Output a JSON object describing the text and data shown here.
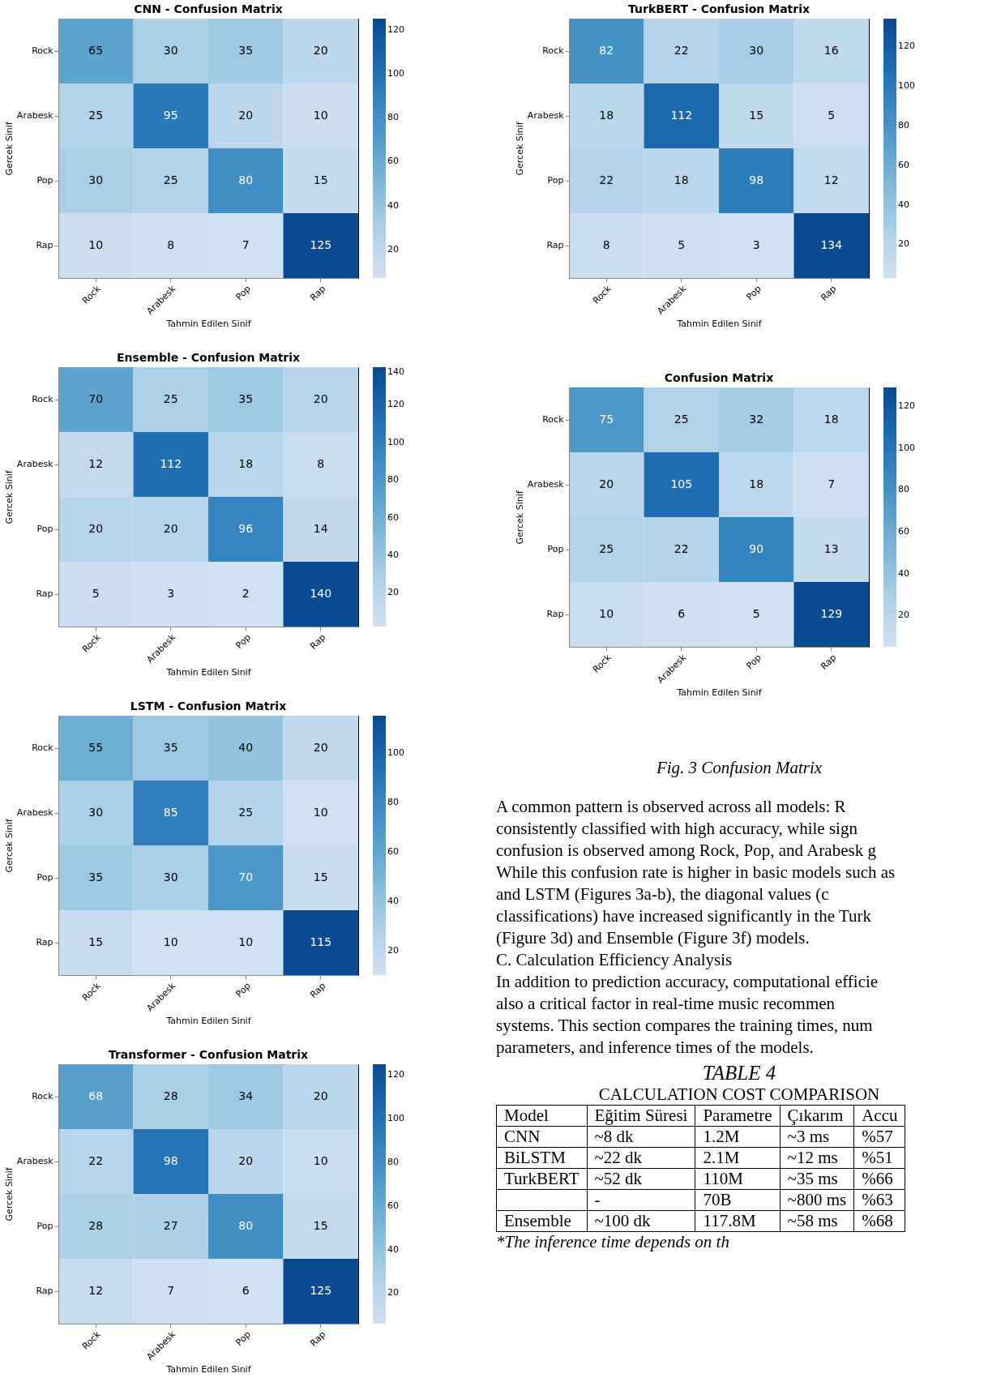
{
  "chart_data": [
    {
      "type": "heatmap",
      "title": "CNN - Confusion Matrix",
      "xlabel": "Tahmin Edilen Sinif",
      "ylabel": "Gercek Sinif",
      "categories": [
        "Rock",
        "Arabesk",
        "Pop",
        "Rap"
      ],
      "y_categories": [
        "Rock",
        "Arabesk",
        "Pop",
        "Rap"
      ],
      "cells": [
        [
          65,
          30,
          35,
          20
        ],
        [
          25,
          95,
          20,
          10
        ],
        [
          30,
          25,
          80,
          15
        ],
        [
          10,
          8,
          7,
          125
        ]
      ],
      "clim": [
        7,
        125
      ],
      "cticks": [
        20,
        40,
        60,
        80,
        100,
        120
      ],
      "data_labels": true
    },
    {
      "type": "heatmap",
      "title": "Ensemble - Confusion Matrix",
      "xlabel": "Tahmin Edilen Sinif",
      "ylabel": "Gercek Sinif",
      "categories": [
        "Rock",
        "Arabesk",
        "Pop",
        "Rap"
      ],
      "y_categories": [
        "Rock",
        "Arabesk",
        "Pop",
        "Rap"
      ],
      "cells": [
        [
          70,
          25,
          35,
          20
        ],
        [
          12,
          112,
          18,
          8
        ],
        [
          20,
          20,
          96,
          14
        ],
        [
          5,
          3,
          2,
          140
        ]
      ],
      "clim": [
        2,
        140
      ],
      "cticks": [
        20,
        40,
        60,
        80,
        100,
        120,
        140
      ],
      "data_labels": true
    },
    {
      "type": "heatmap",
      "title": "LSTM - Confusion Matrix",
      "xlabel": "Tahmin Edilen Sinif",
      "ylabel": "Gercek Sinif",
      "categories": [
        "Rock",
        "Arabesk",
        "Pop",
        "Rap"
      ],
      "y_categories": [
        "Rock",
        "Arabesk",
        "Pop",
        "Rap"
      ],
      "cells": [
        [
          55,
          35,
          40,
          20
        ],
        [
          30,
          85,
          25,
          10
        ],
        [
          35,
          30,
          70,
          15
        ],
        [
          15,
          10,
          10,
          115
        ]
      ],
      "clim": [
        10,
        115
      ],
      "cticks": [
        20,
        40,
        60,
        80,
        100
      ],
      "data_labels": true
    },
    {
      "type": "heatmap",
      "title": "Transformer - Confusion Matrix",
      "xlabel": "Tahmin Edilen Sinif",
      "ylabel": "Gercek Sinif",
      "categories": [
        "Rock",
        "Arabesk",
        "Pop",
        "Rap"
      ],
      "y_categories": [
        "Rock",
        "Arabesk",
        "Pop",
        "Rap"
      ],
      "cells": [
        [
          68,
          28,
          34,
          20
        ],
        [
          22,
          98,
          20,
          10
        ],
        [
          28,
          27,
          80,
          15
        ],
        [
          12,
          7,
          6,
          125
        ]
      ],
      "clim": [
        6,
        125
      ],
      "cticks": [
        20,
        40,
        60,
        80,
        100,
        120
      ],
      "data_labels": true
    },
    {
      "type": "heatmap",
      "title": "TurkBERT - Confusion Matrix",
      "xlabel": "Tahmin Edilen Sinif",
      "ylabel": "Gercek Sinif",
      "categories": [
        "Rock",
        "Arabesk",
        "Pop",
        "Rap"
      ],
      "y_categories": [
        "Rock",
        "Arabesk",
        "Pop",
        "Rap"
      ],
      "cells": [
        [
          82,
          22,
          30,
          16
        ],
        [
          18,
          112,
          15,
          5
        ],
        [
          22,
          18,
          98,
          12
        ],
        [
          8,
          5,
          3,
          134
        ]
      ],
      "clim": [
        3,
        134
      ],
      "cticks": [
        20,
        40,
        60,
        80,
        100,
        120
      ],
      "data_labels": true
    },
    {
      "type": "heatmap",
      "title": "Confusion Matrix",
      "xlabel": "Tahmin Edilen Sinif",
      "ylabel": "Gercek Sinif",
      "categories": [
        "Rock",
        "Arabesk",
        "Pop",
        "Rap"
      ],
      "y_categories": [
        "Rock",
        "Arabesk",
        "Pop",
        "Rap"
      ],
      "cells": [
        [
          75,
          25,
          32,
          18
        ],
        [
          20,
          105,
          18,
          7
        ],
        [
          25,
          22,
          90,
          13
        ],
        [
          10,
          6,
          5,
          129
        ]
      ],
      "clim": [
        5,
        129
      ],
      "cticks": [
        20,
        40,
        60,
        80,
        100,
        120
      ],
      "data_labels": true
    },
    {
      "type": "other",
      "title": "TABLE 4",
      "subtitle": "CALCULATION COST COMPARISON",
      "ylabel": "Model",
      "categories": [
        "Eğitim Süresi",
        "Parametre",
        "Çıkarım",
        "Accu"
      ],
      "y_categories": [
        "CNN",
        "BiLSTM",
        "TurkBERT",
        null,
        "Ensemble"
      ],
      "cell_labels": [
        [
          "~8 dk",
          "1.2M",
          "~3 ms",
          "%57"
        ],
        [
          "~22 dk",
          "2.1M",
          "~12 ms",
          "%51"
        ],
        [
          "~52 dk",
          "110M",
          "~35 ms",
          "%66"
        ],
        [
          "-",
          "70B",
          "~800 ms",
          "%63"
        ],
        [
          "~100 dk",
          "117.8M",
          "~58 ms",
          "%68"
        ]
      ],
      "annotations": [
        "Fig. 3 Confusion Matrix",
        "A common pattern is observed across all models: R",
        "consistently classified with high accuracy, while sign",
        "confusion is observed among Rock, Pop, and Arabesk g",
        "While this confusion rate is higher in basic models such as",
        "and LSTM (Figures 3a-b), the diagonal values (c",
        "classifications) have increased significantly in the Turk",
        "(Figure 3d) and Ensemble (Figure 3f) models.",
        "C. Calculation Efficiency Analysis",
        "In addition to prediction accuracy, computational efficie",
        "also a critical factor in real-time music recommen",
        "systems. This section compares the training times, num",
        "parameters, and inference times of the models.",
        "*The inference time depends on th"
      ]
    }
  ]
}
